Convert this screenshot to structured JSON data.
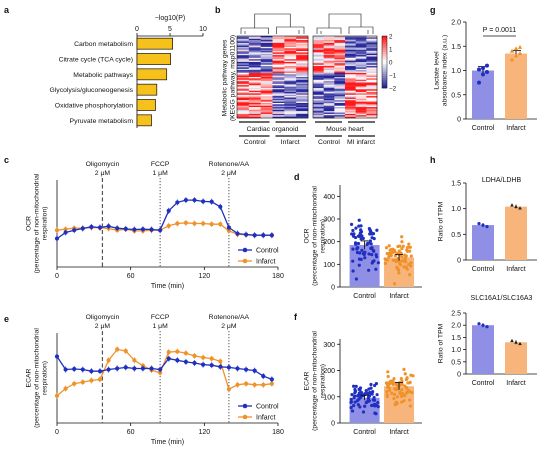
{
  "panel_letters": [
    "a",
    "b",
    "c",
    "d",
    "e",
    "f",
    "g",
    "h"
  ],
  "colors": {
    "control": "#1f2fc0",
    "infarct": "#f0922a",
    "control_fill": "#8f8fe6",
    "infarct_fill": "#f7b57c",
    "gold": "#f6c11b",
    "dashed": "#555555"
  },
  "chart_data": [
    {
      "panel": "a",
      "type": "bar",
      "orientation": "horizontal",
      "xlabel": "−log10(P)",
      "xlim": [
        0,
        10
      ],
      "xticks": [
        "0",
        "5",
        "10"
      ],
      "categories": [
        "Carbon metabolism",
        "Citrate cycle (TCA cycle)",
        "Metabolic pathways",
        "Glycolysis/gluconeogenesis",
        "Oxidative phosphorylation",
        "Pyruvate metabolism"
      ],
      "values": [
        5.4,
        5.1,
        4.5,
        3.0,
        2.8,
        2.2
      ]
    },
    {
      "panel": "b",
      "type": "heatmap",
      "ylabel_lines": [
        "Metabolic pathway genes",
        "(KEGG pathway, map01100)"
      ],
      "groups": [
        {
          "title": "Cardiac organoid",
          "columns": [
            "Control",
            "Infarct"
          ]
        },
        {
          "title": "Mouse heart",
          "columns": [
            "Control",
            "MI infarct"
          ]
        }
      ],
      "colorbar_ticks": [
        "2",
        "1",
        "0",
        "−1",
        "−2"
      ],
      "color_range": [
        -2,
        2
      ]
    },
    {
      "panel": "c",
      "type": "line",
      "ylabel_lines": [
        "OCR",
        "(percentage of non-mitochondrial",
        "respiration)"
      ],
      "xlabel": "Time (min)",
      "xticks": [
        0,
        60,
        120,
        180
      ],
      "xlim": [
        0,
        180
      ],
      "ylim": [
        0,
        260
      ],
      "injections": [
        {
          "label": "Oligomycin",
          "dose": "2 μM",
          "time": 37
        },
        {
          "label": "FCCP",
          "dose": "1 μM",
          "time": 84
        },
        {
          "label": "Rotenone/AA",
          "dose": "2 μM",
          "time": 140
        }
      ],
      "x": [
        0,
        7,
        14,
        21,
        28,
        35,
        42,
        49,
        56,
        63,
        70,
        77,
        84,
        91,
        98,
        105,
        112,
        119,
        126,
        133,
        140,
        147,
        154,
        161,
        168,
        175
      ],
      "series": [
        {
          "name": "Control",
          "values": [
            85,
            103,
            110,
            115,
            120,
            118,
            122,
            116,
            114,
            112,
            113,
            112,
            110,
            168,
            193,
            200,
            200,
            196,
            195,
            180,
            118,
            100,
            97,
            95,
            95,
            95
          ]
        },
        {
          "name": "Infarct",
          "values": [
            110,
            113,
            116,
            116,
            118,
            117,
            115,
            110,
            113,
            108,
            108,
            110,
            110,
            123,
            130,
            132,
            130,
            130,
            128,
            128,
            108,
            98,
            96,
            95,
            95,
            95
          ]
        }
      ]
    },
    {
      "panel": "d",
      "type": "bar",
      "ylabel_lines": [
        "OCR",
        "(percentage of non-mitochondrial",
        "respiration)"
      ],
      "categories": [
        "Control",
        "Infarct"
      ],
      "values": [
        185,
        130
      ],
      "ylim": [
        0,
        450
      ],
      "yticks": [
        0,
        100,
        200,
        300,
        400
      ]
    },
    {
      "panel": "e",
      "type": "line",
      "ylabel_lines": [
        "ECAR",
        "(percentage of non-mitochondrial",
        "respiration)"
      ],
      "xlabel": "Time (min)",
      "xticks": [
        0,
        60,
        120,
        180
      ],
      "xlim": [
        0,
        180
      ],
      "ylim": [
        0,
        165
      ],
      "injections": [
        {
          "label": "Oligomycin",
          "dose": "2 μM",
          "time": 37
        },
        {
          "label": "FCCP",
          "dose": "1 μM",
          "time": 84
        },
        {
          "label": "Rotenone/AA",
          "dose": "2 μM",
          "time": 140
        }
      ],
      "x": [
        0,
        7,
        14,
        21,
        28,
        35,
        42,
        49,
        56,
        63,
        70,
        77,
        84,
        91,
        98,
        105,
        112,
        119,
        126,
        133,
        140,
        147,
        154,
        161,
        168,
        175
      ],
      "series": [
        {
          "name": "Control",
          "values": [
            122,
            98,
            99,
            98,
            95,
            95,
            98,
            100,
            102,
            100,
            100,
            100,
            98,
            118,
            115,
            112,
            110,
            107,
            106,
            103,
            102,
            100,
            98,
            96,
            86,
            80
          ]
        },
        {
          "name": "Infarct",
          "values": [
            50,
            63,
            72,
            75,
            78,
            80,
            115,
            135,
            132,
            115,
            105,
            97,
            92,
            130,
            131,
            128,
            123,
            120,
            118,
            113,
            62,
            70,
            72,
            70,
            70,
            72
          ]
        }
      ]
    },
    {
      "panel": "f",
      "type": "bar",
      "ylabel_lines": [
        "ECAR",
        "(percentage of non-mitochondrial",
        "respiration)"
      ],
      "categories": [
        "Control",
        "Infarct"
      ],
      "values": [
        96,
        140
      ],
      "ylim": [
        0,
        320
      ],
      "yticks": [
        0,
        100,
        200,
        300
      ]
    },
    {
      "panel": "g",
      "type": "bar",
      "ylabel_lines": [
        "Lactate level",
        "absorbance index (a.u.)"
      ],
      "categories": [
        "Control",
        "Infarct"
      ],
      "values": [
        1.0,
        1.35
      ],
      "errors": [
        0.08,
        0.06
      ],
      "points": [
        [
          0.75,
          0.92,
          0.97,
          1.02,
          1.05,
          1.1
        ],
        [
          1.22,
          1.3,
          1.35,
          1.4,
          1.45,
          1.48
        ]
      ],
      "ylim": [
        0,
        2.0
      ],
      "yticks": [
        "0",
        "0.5",
        "1.0",
        "1.5",
        "2.0"
      ],
      "annotation": "P = 0.0011"
    },
    {
      "panel": "h1",
      "type": "bar",
      "title": "LDHA/LDHB",
      "ylabel": "Ratio of TPM",
      "categories": [
        "Control",
        "Infarct"
      ],
      "values": [
        0.68,
        1.04
      ],
      "ylim": [
        0,
        1.5
      ],
      "yticks": [
        "0",
        "0.5",
        "1.0",
        "1.5"
      ]
    },
    {
      "panel": "h2",
      "type": "bar",
      "title": "SLC16A1/SLC16A3",
      "ylabel": "Ratio of TPM",
      "categories": [
        "Control",
        "Infarct"
      ],
      "values": [
        2.0,
        1.3
      ],
      "ylim": [
        0,
        2.5
      ],
      "yticks": [
        "0",
        "0.5",
        "1.0",
        "1.5",
        "2.0",
        "2.5"
      ]
    }
  ]
}
